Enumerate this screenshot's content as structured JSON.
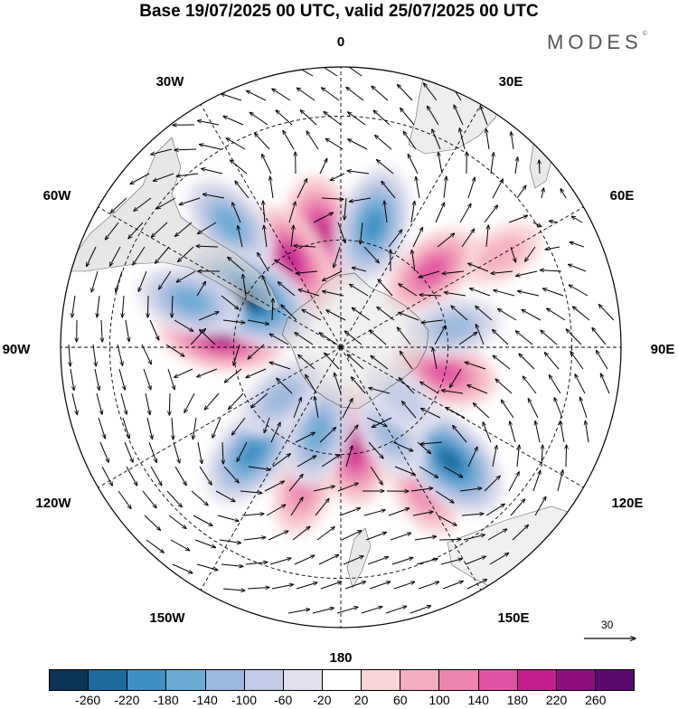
{
  "title": "Base 19/07/2025 00 UTC, valid 25/07/2025 00 UTC",
  "brand": "MODES",
  "brand_mark": "©",
  "longitude_labels": {
    "lon_0": "0",
    "lon_30e": "30E",
    "lon_60e": "60E",
    "lon_90e": "90E",
    "lon_120e": "120E",
    "lon_150e": "150E",
    "lon_180": "180",
    "lon_150w": "150W",
    "lon_120w": "120W",
    "lon_90w": "90W",
    "lon_60w": "60W",
    "lon_30w": "30W"
  },
  "reference_vector": {
    "value": "30"
  },
  "colorbar": {
    "colors": [
      "#0b3456",
      "#1c6a9e",
      "#3d8fc4",
      "#6aaad3",
      "#9ab8db",
      "#c2cbe6",
      "#e2e1f0",
      "#ffffff",
      "#f8d4d6",
      "#f4afc0",
      "#ec86b0",
      "#e053a3",
      "#c41f8d",
      "#8e0f7c",
      "#5a0a6c"
    ],
    "ticks": [
      "-260",
      "-220",
      "-180",
      "-140",
      "-100",
      "-60",
      "-20",
      "20",
      "60",
      "100",
      "140",
      "180",
      "220",
      "260"
    ]
  },
  "chart_data": {
    "type": "polar stereographic anomaly map with wind vectors",
    "projection": "south polar stereographic",
    "variable_units": "anomaly (colorbar -260 to 260)",
    "valid": "25/07/2025 00 UTC",
    "positive_anomalies": [
      {
        "lon": -10,
        "lat": -58,
        "value": 180
      },
      {
        "lon": -30,
        "lat": -62,
        "value": 180
      },
      {
        "lon": 50,
        "lat": -57,
        "value": 140
      },
      {
        "lon": -83,
        "lat": -57,
        "value": 220
      },
      {
        "lon": 104,
        "lat": -60,
        "value": 140
      },
      {
        "lon": 173,
        "lat": -62,
        "value": 180
      },
      {
        "lon": -165,
        "lat": -50,
        "value": 100
      },
      {
        "lon": 150,
        "lat": -45,
        "value": 100
      },
      {
        "lon": 60,
        "lat": -40,
        "value": 60
      }
    ],
    "negative_anomalies": [
      {
        "lon": -42,
        "lat": -45,
        "value": -140
      },
      {
        "lon": 15,
        "lat": -55,
        "value": -180
      },
      {
        "lon": -62,
        "lat": -60,
        "value": -260
      },
      {
        "lon": -73,
        "lat": -47,
        "value": -140
      },
      {
        "lon": 80,
        "lat": -58,
        "value": -100
      },
      {
        "lon": -140,
        "lat": -52,
        "value": -180
      },
      {
        "lon": -165,
        "lat": -65,
        "value": -140
      },
      {
        "lon": 136,
        "lat": -47,
        "value": -220
      },
      {
        "lon": 150,
        "lat": -62,
        "value": -100
      },
      {
        "lon": 130,
        "lat": -67,
        "value": -60
      },
      {
        "lon": -130,
        "lat": -68,
        "value": -100
      }
    ]
  }
}
